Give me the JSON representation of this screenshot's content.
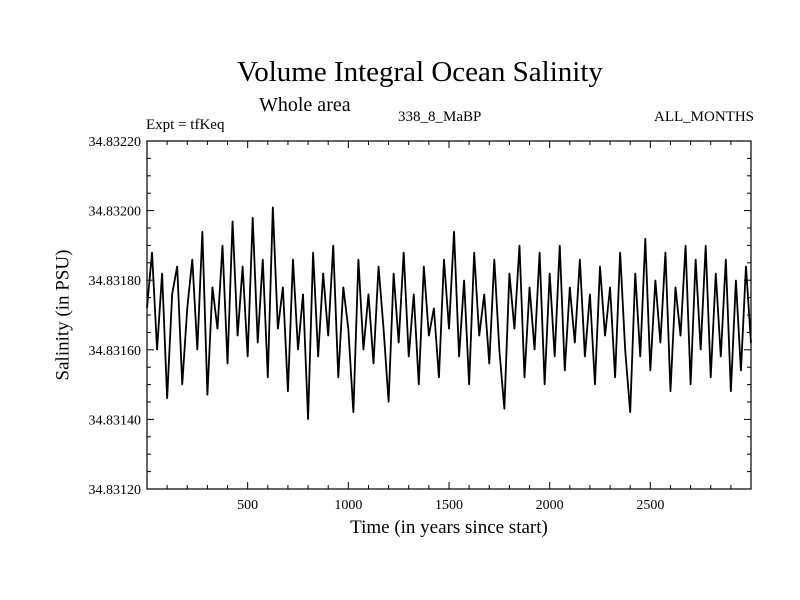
{
  "chart_data": {
    "type": "line",
    "title": "Volume Integral Ocean Salinity",
    "subtitle": "Whole area",
    "annotations": {
      "left": "Expt = tfKeq",
      "center": "338_8_MaBP",
      "right": "ALL_MONTHS"
    },
    "xlabel": "Time (in years since start)",
    "ylabel": "Salinity (in PSU)",
    "xlim": [
      0,
      3000
    ],
    "ylim": [
      34.8312,
      34.8322
    ],
    "x_ticks": [
      500,
      1000,
      1500,
      2000,
      2500
    ],
    "y_ticks": [
      34.8312,
      34.8314,
      34.8316,
      34.8318,
      34.832,
      34.8322
    ],
    "y_tick_labels": [
      "34.83120",
      "34.83140",
      "34.83160",
      "34.83180",
      "34.83200",
      "34.83220"
    ],
    "x_tick_labels": [
      "500",
      "1000",
      "1500",
      "2000",
      "2500"
    ],
    "grid": false,
    "series": [
      {
        "color": "#000000",
        "x": [
          0,
          25,
          50,
          75,
          100,
          125,
          150,
          175,
          200,
          225,
          250,
          275,
          300,
          325,
          350,
          375,
          400,
          425,
          450,
          475,
          500,
          525,
          550,
          575,
          600,
          625,
          650,
          675,
          700,
          725,
          750,
          775,
          800,
          825,
          850,
          875,
          900,
          925,
          950,
          975,
          1000,
          1025,
          1050,
          1075,
          1100,
          1125,
          1150,
          1175,
          1200,
          1225,
          1250,
          1275,
          1300,
          1325,
          1350,
          1375,
          1400,
          1425,
          1450,
          1475,
          1500,
          1525,
          1550,
          1575,
          1600,
          1625,
          1650,
          1675,
          1700,
          1725,
          1750,
          1775,
          1800,
          1825,
          1850,
          1875,
          1900,
          1925,
          1950,
          1975,
          2000,
          2025,
          2050,
          2075,
          2100,
          2125,
          2150,
          2175,
          2200,
          2225,
          2250,
          2275,
          2300,
          2325,
          2350,
          2375,
          2400,
          2425,
          2450,
          2475,
          2500,
          2525,
          2550,
          2575,
          2600,
          2625,
          2650,
          2675,
          2700,
          2725,
          2750,
          2775,
          2800,
          2825,
          2850,
          2875,
          2900,
          2925,
          2950,
          2975,
          3000
        ],
        "y": [
          34.83172,
          34.83188,
          34.8316,
          34.83182,
          34.83146,
          34.83176,
          34.83184,
          34.8315,
          34.83172,
          34.83186,
          34.8316,
          34.83194,
          34.83147,
          34.83178,
          34.83166,
          34.8319,
          34.83156,
          34.83197,
          34.83164,
          34.83184,
          34.83158,
          34.83198,
          34.83162,
          34.83186,
          34.83152,
          34.83201,
          34.83166,
          34.83178,
          34.83148,
          34.83186,
          34.8316,
          34.83176,
          34.8314,
          34.83188,
          34.83158,
          34.83182,
          34.83164,
          34.8319,
          34.83152,
          34.83178,
          34.83166,
          34.83142,
          34.83186,
          34.8316,
          34.83176,
          34.83156,
          34.83184,
          34.83166,
          34.83145,
          34.83182,
          34.83162,
          34.83188,
          34.83158,
          34.83176,
          34.8315,
          34.83184,
          34.83164,
          34.83172,
          34.83152,
          34.83186,
          34.83166,
          34.83194,
          34.83158,
          34.8318,
          34.8315,
          34.83188,
          34.83164,
          34.83176,
          34.83156,
          34.83186,
          34.8316,
          34.83143,
          34.83182,
          34.83166,
          34.8319,
          34.83152,
          34.83178,
          34.8316,
          34.83188,
          34.8315,
          34.83182,
          34.83158,
          34.8319,
          34.83154,
          34.83178,
          34.83162,
          34.83186,
          34.83158,
          34.83176,
          34.8315,
          34.83184,
          34.83164,
          34.83178,
          34.83152,
          34.83188,
          34.8316,
          34.83142,
          34.83182,
          34.83158,
          34.83192,
          34.83154,
          34.8318,
          34.83162,
          34.83188,
          34.83148,
          34.83178,
          34.83164,
          34.8319,
          34.8315,
          34.83186,
          34.8316,
          34.8319,
          34.83152,
          34.83182,
          34.83158,
          34.83186,
          34.83148,
          34.8318,
          34.83154,
          34.83184,
          34.83162
        ]
      }
    ]
  }
}
